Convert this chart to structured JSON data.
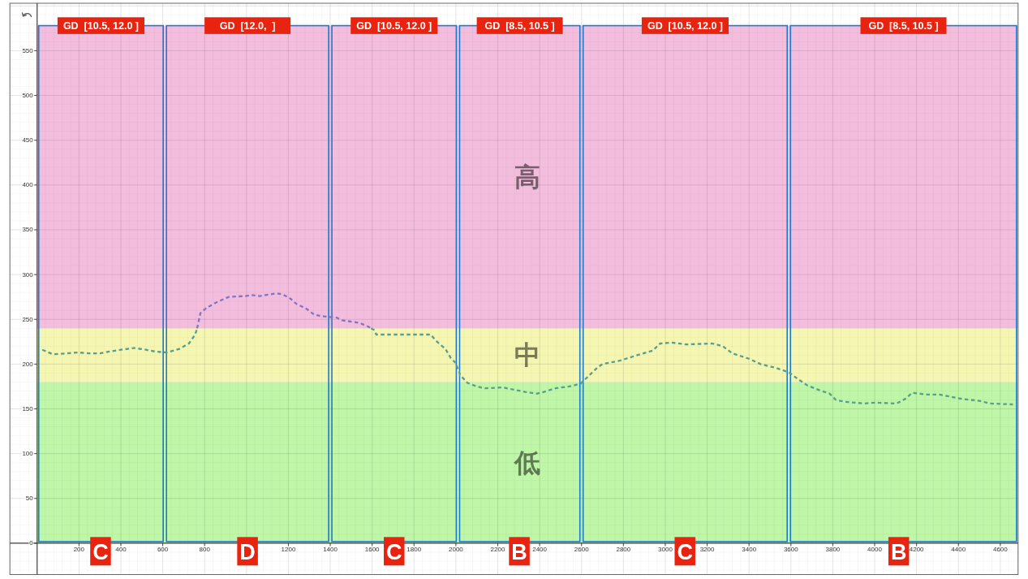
{
  "chart_data": {
    "type": "line",
    "xlim": [
      -130,
      4685
    ],
    "ylim": [
      -35,
      603
    ],
    "xticks": [
      200,
      400,
      600,
      800,
      {
        "value": 1000,
        "label": null
      },
      1200,
      1400,
      1600,
      1800,
      2000,
      2200,
      2400,
      2600,
      2800,
      3000,
      3200,
      3400,
      3600,
      3800,
      4000,
      4200,
      4400,
      4600
    ],
    "yticks": [
      0,
      50,
      100,
      150,
      200,
      250,
      300,
      350,
      400,
      450,
      500,
      550
    ],
    "grid": true,
    "line_style": "dashed",
    "series": [
      {
        "color": "#5a9e8e",
        "x": [
          25,
          75,
          140,
          195,
          250,
          300,
          345,
          400,
          465,
          520,
          565,
          620,
          680,
          725,
          755,
          764
        ],
        "values": [
          216,
          211,
          212,
          213,
          212,
          212,
          214,
          216,
          218,
          216,
          214,
          213,
          217,
          223,
          233,
          240
        ]
      },
      {
        "color": "#8274c2",
        "x": [
          764,
          768,
          780,
          810,
          865,
          915,
          995,
          1025,
          1065,
          1090,
          1145,
          1170,
          1205,
          1240,
          1285,
          1325,
          1380,
          1430,
          1455,
          1540,
          1580,
          1595
        ],
        "values": [
          240,
          244,
          257,
          263,
          270,
          275,
          276,
          277,
          276,
          277,
          279,
          278,
          274,
          267,
          262,
          255,
          253,
          252,
          249,
          246,
          242,
          240
        ]
      },
      {
        "color": "#5a9e8e",
        "x": [
          1595,
          1610,
          1620,
          1880,
          1905,
          1950,
          1975,
          2000,
          2020,
          2055,
          2100,
          2140,
          2225,
          2265,
          2330,
          2385,
          2420,
          2475,
          2540,
          2595,
          2635,
          2675,
          2700,
          2785,
          2880,
          2940,
          2975,
          3030,
          3100,
          3225,
          3275,
          3320,
          3400,
          3455,
          3525,
          3590,
          3635,
          3680,
          3735,
          3785,
          3815,
          3855,
          3950,
          4000,
          4105,
          4145,
          4180,
          4250,
          4310,
          4420,
          4500,
          4550,
          4660
        ],
        "values": [
          240,
          238,
          233,
          233,
          226,
          217,
          207,
          201,
          188,
          179,
          175,
          173,
          174,
          172,
          169,
          167,
          169,
          173,
          175,
          178,
          187,
          196,
          200,
          204,
          211,
          215,
          223,
          224,
          222,
          223,
          220,
          212,
          206,
          200,
          196,
          191,
          183,
          176,
          171,
          167,
          160,
          158,
          156,
          157,
          156,
          161,
          168,
          166,
          166,
          161,
          159,
          156,
          155
        ]
      }
    ],
    "bands": [
      {
        "axis": "y",
        "from": 0,
        "to": 180,
        "label": "低",
        "color": "#c5fba7"
      },
      {
        "axis": "y",
        "from": 180,
        "to": 240,
        "label": "中",
        "color": "#fdfbb2"
      },
      {
        "axis": "y",
        "from": 240,
        "to": 578,
        "label": "高",
        "color": "#fbc1de"
      },
      {
        "axis": "x",
        "from": 0,
        "to": 610,
        "label": "GD  [10.5, 12.0 ]",
        "color": "#1c7cca"
      },
      {
        "axis": "x",
        "from": 610,
        "to": 1400,
        "label": "GD  [12.0,  ]",
        "color": "#1c7cca"
      },
      {
        "axis": "x",
        "from": 1400,
        "to": 2010,
        "label": "GD  [10.5, 12.0 ]",
        "color": "#1c7cca"
      },
      {
        "axis": "x",
        "from": 2010,
        "to": 2600,
        "label": "GD  [8.5, 10.5 ]",
        "color": "#1c7cca"
      },
      {
        "axis": "x",
        "from": 2600,
        "to": 3590,
        "label": "GD  [10.5, 12.0 ]",
        "color": "#1c7cca"
      },
      {
        "axis": "x",
        "from": 3590,
        "to": 4685,
        "label": "GD  [8.5, 10.5 ]",
        "color": "#1c7cca"
      }
    ],
    "annotations": [
      {
        "text": "C",
        "x": 303,
        "y": -9
      },
      {
        "text": "D",
        "x": 1005,
        "y": -9
      },
      {
        "text": "C",
        "x": 1705,
        "y": -9
      },
      {
        "text": "B",
        "x": 2303,
        "y": -9
      },
      {
        "text": "C",
        "x": 3094,
        "y": -9
      },
      {
        "text": "B",
        "x": 4115,
        "y": -9
      }
    ]
  }
}
